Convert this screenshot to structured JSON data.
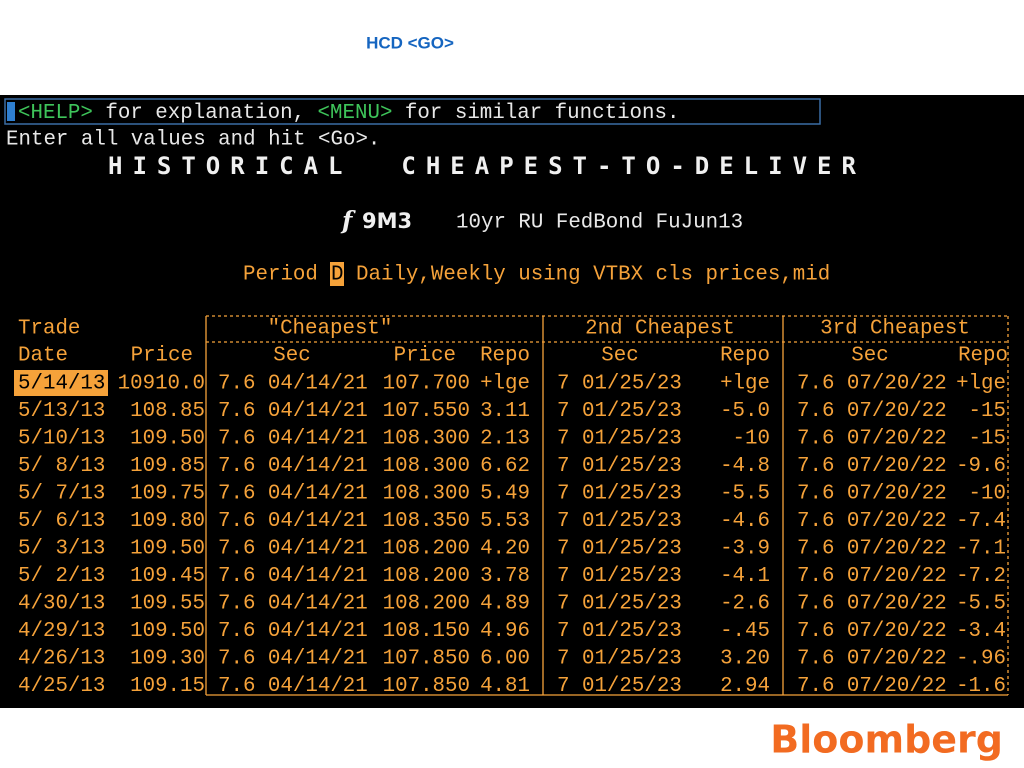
{
  "command": "HCD <GO>",
  "terminal": {
    "help_line": {
      "help_key": "<HELP>",
      "text1": " for explanation, ",
      "menu_key": "<MENU>",
      "text2": " for similar functions."
    },
    "instruction": "Enter all values and hit <Go>.",
    "title": "HISTORICAL  CHEAPEST-TO-DELIVER",
    "ticker_symbol": "f",
    "ticker": "9M3",
    "description": "10yr RU FedBond FuJun13",
    "period": {
      "label": "Period",
      "value": "D",
      "rest": "Daily,Weekly using VTBX cls prices,mid"
    },
    "table": {
      "group_headers": [
        "Trade",
        "\"Cheapest\"",
        "2nd Cheapest",
        "3rd Cheapest"
      ],
      "columns": [
        "Date",
        "Price",
        "Sec",
        "Price",
        "Repo",
        "Sec",
        "Repo",
        "Sec",
        "Repo"
      ],
      "rows": [
        [
          "5/14/13",
          "10910.0",
          "7.6 04/14/21",
          "107.700",
          "+lge",
          "7 01/25/23",
          "+lge",
          "7.6 07/20/22",
          "+lge"
        ],
        [
          "5/13/13",
          "108.85",
          "7.6 04/14/21",
          "107.550",
          "3.11",
          "7 01/25/23",
          "-5.0",
          "7.6 07/20/22",
          "-15"
        ],
        [
          "5/10/13",
          "109.50",
          "7.6 04/14/21",
          "108.300",
          "2.13",
          "7 01/25/23",
          "-10",
          "7.6 07/20/22",
          "-15"
        ],
        [
          "5/ 8/13",
          "109.85",
          "7.6 04/14/21",
          "108.300",
          "6.62",
          "7 01/25/23",
          "-4.8",
          "7.6 07/20/22",
          "-9.6"
        ],
        [
          "5/ 7/13",
          "109.75",
          "7.6 04/14/21",
          "108.300",
          "5.49",
          "7 01/25/23",
          "-5.5",
          "7.6 07/20/22",
          "-10"
        ],
        [
          "5/ 6/13",
          "109.80",
          "7.6 04/14/21",
          "108.350",
          "5.53",
          "7 01/25/23",
          "-4.6",
          "7.6 07/20/22",
          "-7.4"
        ],
        [
          "5/ 3/13",
          "109.50",
          "7.6 04/14/21",
          "108.200",
          "4.20",
          "7 01/25/23",
          "-3.9",
          "7.6 07/20/22",
          "-7.1"
        ],
        [
          "5/ 2/13",
          "109.45",
          "7.6 04/14/21",
          "108.200",
          "3.78",
          "7 01/25/23",
          "-4.1",
          "7.6 07/20/22",
          "-7.2"
        ],
        [
          "4/30/13",
          "109.55",
          "7.6 04/14/21",
          "108.200",
          "4.89",
          "7 01/25/23",
          "-2.6",
          "7.6 07/20/22",
          "-5.5"
        ],
        [
          "4/29/13",
          "109.50",
          "7.6 04/14/21",
          "108.150",
          "4.96",
          "7 01/25/23",
          "-.45",
          "7.6 07/20/22",
          "-3.4"
        ],
        [
          "4/26/13",
          "109.30",
          "7.6 04/14/21",
          "107.850",
          "6.00",
          "7 01/25/23",
          "3.20",
          "7.6 07/20/22",
          "-.96"
        ],
        [
          "4/25/13",
          "109.15",
          "7.6 04/14/21",
          "107.850",
          "4.81",
          "7 01/25/23",
          "2.94",
          "7.6 07/20/22",
          "-1.6"
        ]
      ]
    }
  },
  "logo": "Bloomberg"
}
